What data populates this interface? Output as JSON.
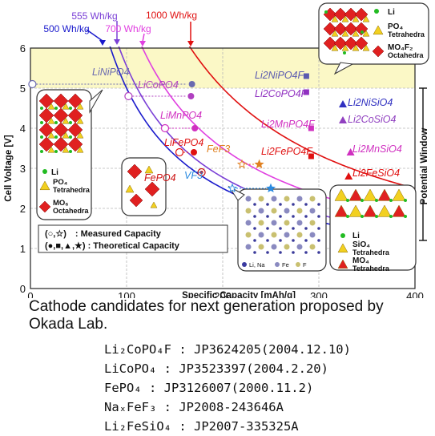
{
  "chart_data": {
    "type": "scatter",
    "xlabel": "Specific Capacity [mAh/g]",
    "ylabel": "Cell Voltage [V]",
    "xlim": [
      0,
      400
    ],
    "ylim": [
      0,
      6
    ],
    "xticks": [
      "0",
      "100",
      "200",
      "300",
      "400"
    ],
    "yticks": [
      "0",
      "1",
      "2",
      "3",
      "4",
      "5",
      "6"
    ],
    "right_label": "Potential Window",
    "potential_window_band": [
      5,
      6
    ],
    "energy_curves": [
      {
        "label": "500 Wh/kg",
        "wh": 500,
        "color": "#1a1acc"
      },
      {
        "label": "555 Wh/kg",
        "wh": 555,
        "color": "#7a3fd6"
      },
      {
        "label": "700 Wh/kg",
        "wh": 700,
        "color": "#e040e0"
      },
      {
        "label": "1000 Wh/kg",
        "wh": 1000,
        "color": "#e01010"
      }
    ],
    "materials": [
      {
        "label": "LiNiPO4",
        "color": "#6a6ab0",
        "measured": [
          2,
          5.1
        ],
        "theoretical": [
          168,
          5.1
        ],
        "marker": "circle"
      },
      {
        "label": "LiCoPO4",
        "color": "#b040c0",
        "measured": [
          102,
          4.8
        ],
        "theoretical": [
          167,
          4.8
        ],
        "marker": "circle"
      },
      {
        "label": "LiMnPO4",
        "color": "#d030c0",
        "measured": [
          140,
          4.0
        ],
        "theoretical": [
          171,
          4.0
        ],
        "marker": "circle"
      },
      {
        "label": "LiFePO4",
        "color": "#e01010",
        "measured": [
          155,
          3.4
        ],
        "theoretical": [
          170,
          3.4
        ],
        "marker": "circle"
      },
      {
        "label": "FePO4",
        "color": "#cc1010",
        "measured": [
          178,
          2.9
        ],
        "theoretical": null,
        "marker": "circle"
      },
      {
        "label": "FeF3",
        "color": "#e08020",
        "measured": [
          220,
          3.1
        ],
        "theoretical": [
          238,
          3.1
        ],
        "marker": "star"
      },
      {
        "label": "VF3",
        "color": "#2a8ae0",
        "measured": [
          210,
          2.5
        ],
        "theoretical": [
          250,
          2.5
        ],
        "marker": "star"
      },
      {
        "label": "Li2NiPO4F",
        "color": "#5a5ab0",
        "theoretical": [
          287,
          5.3
        ],
        "marker": "square"
      },
      {
        "label": "Li2CoPO4F",
        "color": "#9030c0",
        "theoretical": [
          287,
          4.9
        ],
        "marker": "square"
      },
      {
        "label": "Li2MnPO4F",
        "color": "#d030c0",
        "theoretical": [
          292,
          4.0
        ],
        "marker": "square"
      },
      {
        "label": "Li2FePO4F",
        "color": "#e01010",
        "theoretical": [
          292,
          3.3
        ],
        "marker": "square"
      },
      {
        "label": "Li2NiSiO4",
        "color": "#3030c0",
        "theoretical": [
          325,
          4.6
        ],
        "marker": "triangle"
      },
      {
        "label": "Li2CoSiO4",
        "color": "#9040c0",
        "theoretical": [
          325,
          4.2
        ],
        "marker": "triangle"
      },
      {
        "label": "Li2MnSiO4",
        "color": "#d030c0",
        "theoretical": [
          333,
          3.4
        ],
        "marker": "triangle"
      },
      {
        "label": "Li2FeSiO4",
        "color": "#e01010",
        "theoretical": [
          331,
          2.8
        ],
        "marker": "triangle"
      }
    ],
    "legend": {
      "measured": "(○,☆)　: Measured Capacity",
      "theoretical": "(●,■,▲,★) : Theoretical Capacity"
    },
    "insets": {
      "top_right": {
        "li": "Li",
        "po4": "PO₄",
        "po4_sub": "Tetrahedra",
        "mo4f2": "MO₄F₂",
        "mo4f2_sub": "Octahedra"
      },
      "left": {
        "li": "Li",
        "po4": "PO₄",
        "po4_sub": "Tetrahedra",
        "mo6": "MO₆",
        "mo6_sub": "Octahedra"
      },
      "center_legend": {
        "li_na": "Li, Na",
        "fe": "Fe",
        "f": "F"
      },
      "right": {
        "li": "Li",
        "sio4": "SiO₄",
        "sio4_sub": "Tetrahedra",
        "mo4": "MO₄",
        "mo4_sub": "Tetrahedra"
      }
    }
  },
  "caption": "Cathode candidates for next generation proposed by Okada Lab.",
  "patents": [
    "Li₂CoPO₄F : JP3624205(2004.12.10)",
    "LiCoPO₄ : JP3523397(2004.2.20)",
    "FePO₄ : JP3126007(2000.11.2)",
    "NaₓFeF₃ : JP2008-243646A",
    "Li₂FeSiO₄ : JP2007-335325A"
  ]
}
